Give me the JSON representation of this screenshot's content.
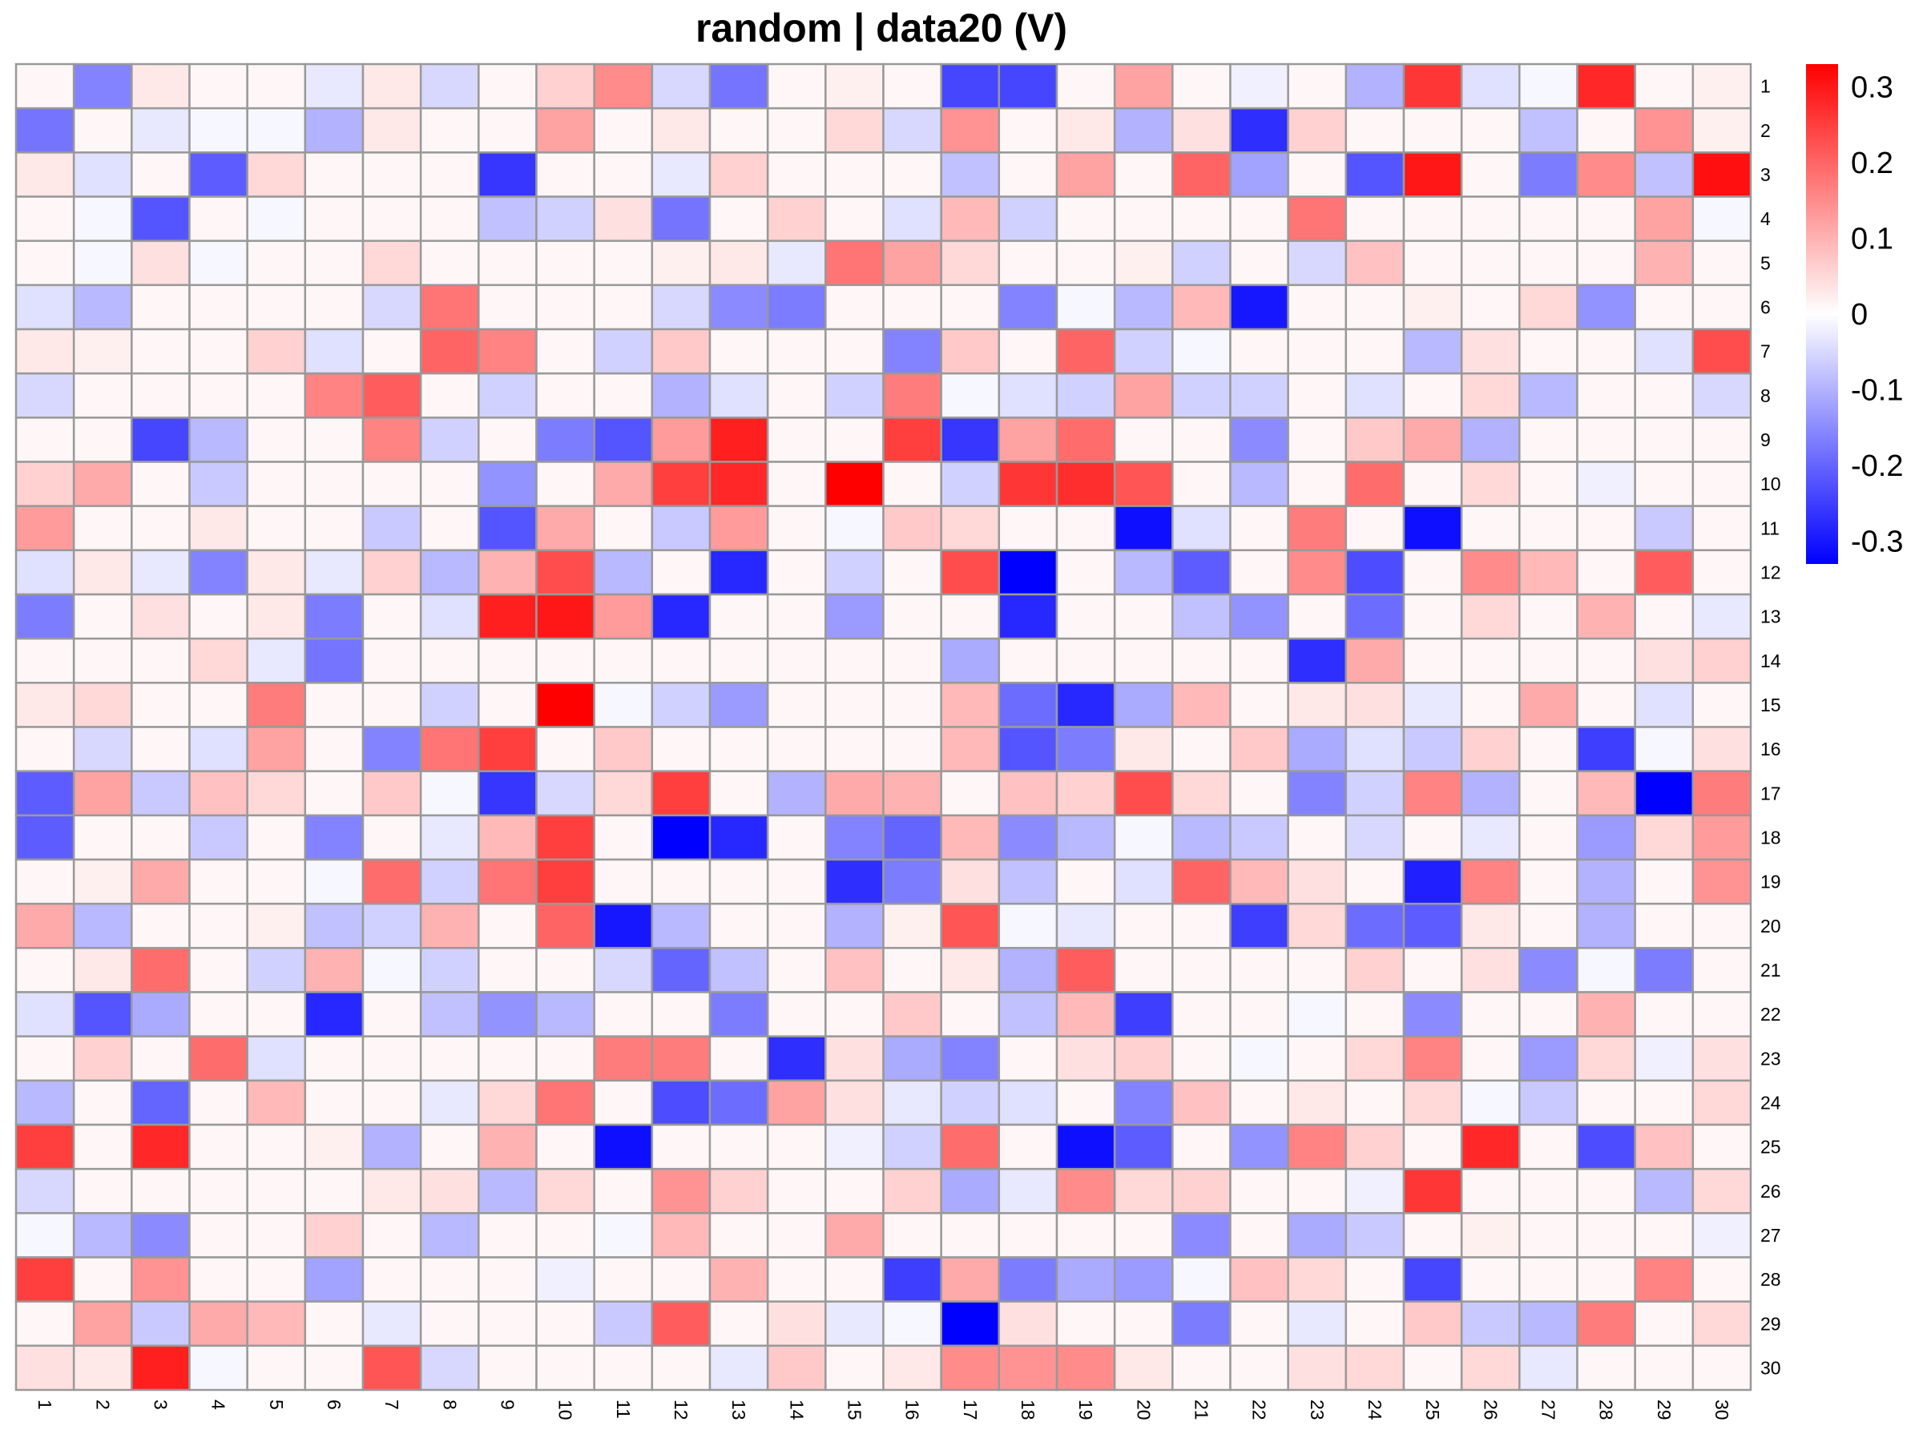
{
  "chart_data": {
    "type": "heatmap",
    "title": "random | data20 (V)",
    "rows": [
      "1",
      "2",
      "3",
      "4",
      "5",
      "6",
      "7",
      "8",
      "9",
      "10",
      "11",
      "12",
      "13",
      "14",
      "15",
      "16",
      "17",
      "18",
      "19",
      "20",
      "21",
      "22",
      "23",
      "24",
      "25",
      "26",
      "27",
      "28",
      "29",
      "30"
    ],
    "columns": [
      "1",
      "2",
      "3",
      "4",
      "5",
      "6",
      "7",
      "8",
      "9",
      "10",
      "11",
      "12",
      "13",
      "14",
      "15",
      "16",
      "17",
      "18",
      "19",
      "20",
      "21",
      "22",
      "23",
      "24",
      "25",
      "26",
      "27",
      "28",
      "29",
      "30"
    ],
    "color_scale": {
      "min": -0.33,
      "max": 0.33,
      "low_color": "#0000ff",
      "mid_color": "#ffffff",
      "high_color": "#ff0000",
      "legend_ticks": [
        0.3,
        0.2,
        0.1,
        0,
        -0.1,
        -0.2,
        -0.3
      ],
      "legend_labels": [
        "0.3",
        "0.2",
        "0.1",
        "0",
        "-0.1",
        "-0.2",
        "-0.3"
      ]
    },
    "cell_border_color": "#999999",
    "values": [
      [
        0.01,
        -0.16,
        0.03,
        0.01,
        0.01,
        -0.03,
        0.03,
        -0.05,
        0.01,
        0.06,
        0.15,
        -0.05,
        -0.18,
        0.01,
        0.02,
        0.01,
        -0.24,
        -0.24,
        0.01,
        0.12,
        0.01,
        -0.02,
        0.01,
        -0.1,
        0.26,
        -0.04,
        -0.01,
        0.28,
        0.01,
        0.02
      ],
      [
        -0.18,
        0.01,
        -0.03,
        -0.01,
        -0.01,
        -0.1,
        0.03,
        0.01,
        0.01,
        0.12,
        0.01,
        0.03,
        0.01,
        0.01,
        0.05,
        -0.05,
        0.14,
        0.01,
        0.03,
        -0.1,
        0.04,
        -0.27,
        0.06,
        0.01,
        0.01,
        0.01,
        -0.08,
        0.01,
        0.14,
        0.02
      ],
      [
        0.03,
        -0.04,
        0.01,
        -0.21,
        0.05,
        0.01,
        0.01,
        0.01,
        -0.26,
        0.01,
        0.01,
        -0.03,
        0.06,
        0.01,
        0.01,
        0.01,
        -0.08,
        0.01,
        0.12,
        0.01,
        0.2,
        -0.12,
        0.01,
        -0.22,
        0.3,
        0.01,
        -0.17,
        0.15,
        -0.08,
        0.31
      ],
      [
        0.01,
        -0.01,
        -0.22,
        0.01,
        -0.01,
        0.01,
        0.01,
        0.01,
        -0.08,
        -0.06,
        0.04,
        -0.18,
        0.01,
        0.06,
        0.01,
        -0.04,
        0.09,
        -0.06,
        0.01,
        0.01,
        0.01,
        0.01,
        0.18,
        0.01,
        0.01,
        0.01,
        0.01,
        0.01,
        0.12,
        -0.01
      ],
      [
        0.01,
        -0.01,
        0.04,
        -0.01,
        0.01,
        0.01,
        0.05,
        0.01,
        0.01,
        0.01,
        0.01,
        0.02,
        0.03,
        -0.03,
        0.18,
        0.12,
        0.05,
        0.01,
        0.01,
        0.02,
        -0.06,
        0.01,
        -0.05,
        0.08,
        0.01,
        0.01,
        0.01,
        0.01,
        0.1,
        0.01
      ],
      [
        -0.04,
        -0.09,
        0.01,
        0.01,
        0.01,
        0.01,
        -0.05,
        0.18,
        0.01,
        0.01,
        0.01,
        -0.05,
        -0.15,
        -0.17,
        0.01,
        0.01,
        0.01,
        -0.16,
        -0.01,
        -0.09,
        0.09,
        -0.3,
        0.01,
        0.01,
        0.02,
        0.01,
        0.05,
        -0.14,
        0.01,
        0.01
      ],
      [
        0.03,
        0.02,
        0.01,
        0.01,
        0.06,
        -0.04,
        0.01,
        0.2,
        0.16,
        0.01,
        -0.06,
        0.07,
        0.01,
        0.01,
        0.01,
        -0.16,
        0.07,
        0.01,
        0.2,
        -0.06,
        -0.01,
        0.01,
        0.01,
        0.01,
        -0.09,
        0.04,
        0.01,
        0.01,
        -0.04,
        0.23
      ],
      [
        -0.05,
        0.01,
        0.01,
        0.01,
        0.01,
        0.16,
        0.21,
        0.01,
        -0.06,
        0.01,
        0.01,
        -0.1,
        -0.04,
        0.01,
        -0.06,
        0.17,
        -0.01,
        -0.04,
        -0.06,
        0.12,
        -0.06,
        -0.06,
        0.01,
        -0.04,
        0.01,
        0.05,
        -0.09,
        0.01,
        0.01,
        -0.05
      ],
      [
        0.01,
        0.01,
        -0.24,
        -0.09,
        0.01,
        0.01,
        0.16,
        -0.06,
        0.01,
        -0.17,
        -0.22,
        0.13,
        0.29,
        0.01,
        0.01,
        0.25,
        -0.26,
        0.12,
        0.19,
        0.01,
        0.01,
        -0.15,
        0.01,
        0.07,
        0.11,
        -0.1,
        0.01,
        0.01,
        0.01,
        0.01
      ],
      [
        0.06,
        0.11,
        0.01,
        -0.07,
        0.01,
        0.01,
        0.01,
        0.01,
        -0.14,
        0.01,
        0.11,
        0.25,
        0.28,
        0.01,
        0.33,
        0.01,
        -0.06,
        0.26,
        0.27,
        0.22,
        0.01,
        -0.09,
        0.01,
        0.19,
        0.01,
        0.05,
        0.01,
        -0.02,
        0.01,
        0.01
      ],
      [
        0.13,
        0.01,
        0.01,
        0.03,
        0.01,
        0.01,
        -0.07,
        0.01,
        -0.22,
        0.11,
        0.01,
        -0.07,
        0.13,
        0.01,
        -0.01,
        0.07,
        0.05,
        0.01,
        0.01,
        -0.31,
        -0.04,
        0.01,
        0.17,
        0.01,
        -0.31,
        0.01,
        0.01,
        0.01,
        -0.07,
        0.01
      ],
      [
        -0.04,
        0.03,
        -0.03,
        -0.16,
        0.03,
        -0.03,
        0.06,
        -0.09,
        0.1,
        0.23,
        -0.09,
        0.01,
        -0.28,
        0.01,
        -0.06,
        0.01,
        0.23,
        -0.33,
        0.01,
        -0.09,
        -0.21,
        0.01,
        0.15,
        -0.23,
        0.01,
        0.15,
        0.09,
        0.01,
        0.21,
        0.01
      ],
      [
        -0.17,
        0.01,
        0.04,
        0.01,
        0.03,
        -0.17,
        0.01,
        -0.04,
        0.29,
        0.3,
        0.13,
        -0.28,
        0.01,
        0.01,
        -0.13,
        0.01,
        0.01,
        -0.28,
        0.01,
        0.01,
        -0.08,
        -0.14,
        0.01,
        -0.19,
        0.01,
        0.05,
        0.01,
        0.1,
        0.01,
        -0.03
      ],
      [
        0.01,
        0.01,
        0.01,
        0.05,
        -0.03,
        -0.18,
        0.01,
        0.01,
        0.01,
        0.01,
        0.01,
        0.01,
        0.01,
        0.01,
        0.01,
        0.01,
        -0.11,
        0.01,
        0.01,
        0.01,
        0.01,
        0.01,
        -0.27,
        0.11,
        0.01,
        0.01,
        0.01,
        0.01,
        0.04,
        0.06
      ],
      [
        0.03,
        0.05,
        0.01,
        0.01,
        0.17,
        0.01,
        0.01,
        -0.06,
        0.01,
        0.33,
        -0.01,
        -0.06,
        -0.13,
        0.01,
        0.01,
        0.01,
        0.09,
        -0.19,
        -0.28,
        -0.11,
        0.09,
        0.01,
        0.03,
        0.04,
        -0.03,
        0.01,
        0.11,
        0.01,
        -0.04,
        0.01
      ],
      [
        0.01,
        -0.05,
        0.01,
        -0.04,
        0.12,
        0.01,
        -0.16,
        0.18,
        0.25,
        0.01,
        0.07,
        0.01,
        0.01,
        0.01,
        0.01,
        0.01,
        0.09,
        -0.22,
        -0.17,
        0.03,
        0.01,
        0.07,
        -0.11,
        -0.04,
        -0.07,
        0.06,
        0.01,
        -0.25,
        -0.01,
        0.04
      ],
      [
        -0.21,
        0.12,
        -0.07,
        0.08,
        0.05,
        0.01,
        0.07,
        -0.01,
        -0.26,
        -0.05,
        0.05,
        0.25,
        0.01,
        -0.1,
        0.11,
        0.1,
        0.01,
        0.08,
        0.06,
        0.23,
        0.05,
        0.01,
        -0.16,
        -0.06,
        0.16,
        -0.1,
        0.01,
        0.09,
        -0.33,
        0.17
      ],
      [
        -0.21,
        0.01,
        0.01,
        -0.07,
        0.01,
        -0.16,
        0.01,
        -0.03,
        0.09,
        0.25,
        0.01,
        -0.33,
        -0.28,
        0.01,
        -0.16,
        -0.2,
        0.09,
        -0.15,
        -0.09,
        -0.01,
        -0.09,
        -0.07,
        0.01,
        -0.05,
        0.01,
        -0.03,
        0.01,
        -0.13,
        0.05,
        0.13
      ],
      [
        0.01,
        0.02,
        0.11,
        0.01,
        0.01,
        -0.01,
        0.19,
        -0.06,
        0.18,
        0.25,
        0.01,
        0.01,
        0.01,
        0.01,
        -0.27,
        -0.17,
        0.04,
        -0.08,
        0.01,
        -0.04,
        0.2,
        0.09,
        0.04,
        0.01,
        -0.29,
        0.16,
        0.01,
        -0.1,
        0.01,
        0.14
      ],
      [
        0.11,
        -0.09,
        0.01,
        0.01,
        0.02,
        -0.08,
        -0.06,
        0.1,
        0.01,
        0.2,
        -0.3,
        -0.09,
        0.01,
        0.01,
        -0.1,
        0.02,
        0.22,
        -0.01,
        -0.03,
        0.01,
        0.01,
        -0.25,
        0.05,
        -0.19,
        -0.21,
        0.03,
        0.01,
        -0.1,
        0.01,
        0.01
      ],
      [
        0.01,
        0.03,
        0.19,
        0.01,
        -0.06,
        0.1,
        -0.01,
        -0.06,
        0.01,
        0.01,
        -0.05,
        -0.2,
        -0.08,
        0.01,
        0.08,
        0.01,
        0.03,
        -0.1,
        0.21,
        0.01,
        0.01,
        0.01,
        0.01,
        0.06,
        0.01,
        0.04,
        -0.15,
        -0.01,
        -0.17,
        0.01
      ],
      [
        -0.04,
        -0.22,
        -0.11,
        0.01,
        0.01,
        -0.28,
        0.01,
        -0.08,
        -0.14,
        -0.09,
        0.01,
        0.01,
        -0.17,
        0.01,
        0.01,
        0.07,
        0.01,
        -0.08,
        0.09,
        -0.25,
        0.01,
        0.01,
        -0.01,
        0.01,
        -0.15,
        0.01,
        0.01,
        0.1,
        0.01,
        0.01
      ],
      [
        0.01,
        0.06,
        0.01,
        0.19,
        -0.04,
        0.01,
        0.01,
        0.01,
        0.01,
        0.01,
        0.17,
        0.17,
        0.01,
        -0.27,
        0.04,
        -0.11,
        -0.16,
        0.01,
        0.04,
        0.06,
        0.01,
        -0.01,
        0.01,
        0.05,
        0.16,
        0.01,
        -0.13,
        0.05,
        -0.02,
        0.04
      ],
      [
        -0.09,
        0.01,
        -0.2,
        0.01,
        0.09,
        0.01,
        0.01,
        -0.03,
        0.05,
        0.18,
        0.01,
        -0.23,
        -0.19,
        0.12,
        0.04,
        -0.03,
        -0.06,
        -0.04,
        0.01,
        -0.16,
        0.08,
        0.01,
        0.03,
        0.01,
        0.05,
        -0.01,
        -0.07,
        0.01,
        0.01,
        0.05
      ],
      [
        0.25,
        0.01,
        0.28,
        0.01,
        0.01,
        0.02,
        -0.1,
        0.01,
        0.1,
        0.01,
        -0.31,
        0.01,
        0.01,
        0.01,
        -0.02,
        -0.06,
        0.19,
        0.01,
        -0.31,
        -0.21,
        0.01,
        -0.14,
        0.16,
        0.06,
        0.01,
        0.28,
        0.01,
        -0.23,
        0.08,
        0.01
      ],
      [
        -0.05,
        0.01,
        0.01,
        0.01,
        0.01,
        0.01,
        0.03,
        0.04,
        -0.09,
        0.05,
        0.01,
        0.14,
        0.06,
        0.01,
        0.01,
        0.06,
        -0.11,
        -0.03,
        0.15,
        0.05,
        0.06,
        0.01,
        0.01,
        -0.02,
        0.26,
        0.01,
        0.01,
        0.01,
        -0.09,
        0.05
      ],
      [
        -0.01,
        -0.09,
        -0.15,
        0.01,
        0.01,
        0.06,
        0.01,
        -0.09,
        0.01,
        0.01,
        -0.01,
        0.09,
        0.01,
        0.01,
        0.11,
        0.01,
        0.01,
        0.01,
        0.01,
        0.01,
        -0.15,
        0.01,
        -0.11,
        -0.07,
        0.01,
        0.02,
        0.01,
        0.01,
        0.01,
        -0.02
      ],
      [
        0.25,
        0.01,
        0.14,
        0.01,
        0.01,
        -0.12,
        0.01,
        0.01,
        0.01,
        -0.02,
        0.01,
        0.01,
        0.1,
        0.01,
        0.01,
        -0.25,
        0.11,
        -0.17,
        -0.11,
        -0.13,
        -0.01,
        0.08,
        0.05,
        0.01,
        -0.24,
        0.01,
        0.01,
        0.01,
        0.16,
        0.01
      ],
      [
        0.01,
        0.12,
        -0.07,
        0.11,
        0.09,
        0.01,
        -0.03,
        0.01,
        0.01,
        0.01,
        -0.07,
        0.21,
        0.01,
        0.04,
        -0.03,
        -0.01,
        -0.33,
        0.04,
        0.01,
        0.01,
        -0.17,
        0.01,
        -0.03,
        0.01,
        0.07,
        -0.07,
        -0.09,
        0.17,
        0.01,
        0.05
      ],
      [
        0.04,
        0.03,
        0.29,
        -0.01,
        0.01,
        0.01,
        0.22,
        -0.05,
        0.01,
        0.01,
        0.01,
        0.01,
        -0.03,
        0.07,
        0.01,
        0.03,
        0.15,
        0.14,
        0.15,
        0.03,
        0.01,
        0.01,
        0.04,
        0.05,
        0.01,
        0.05,
        -0.03,
        0.01,
        0.01,
        0.01
      ]
    ]
  }
}
